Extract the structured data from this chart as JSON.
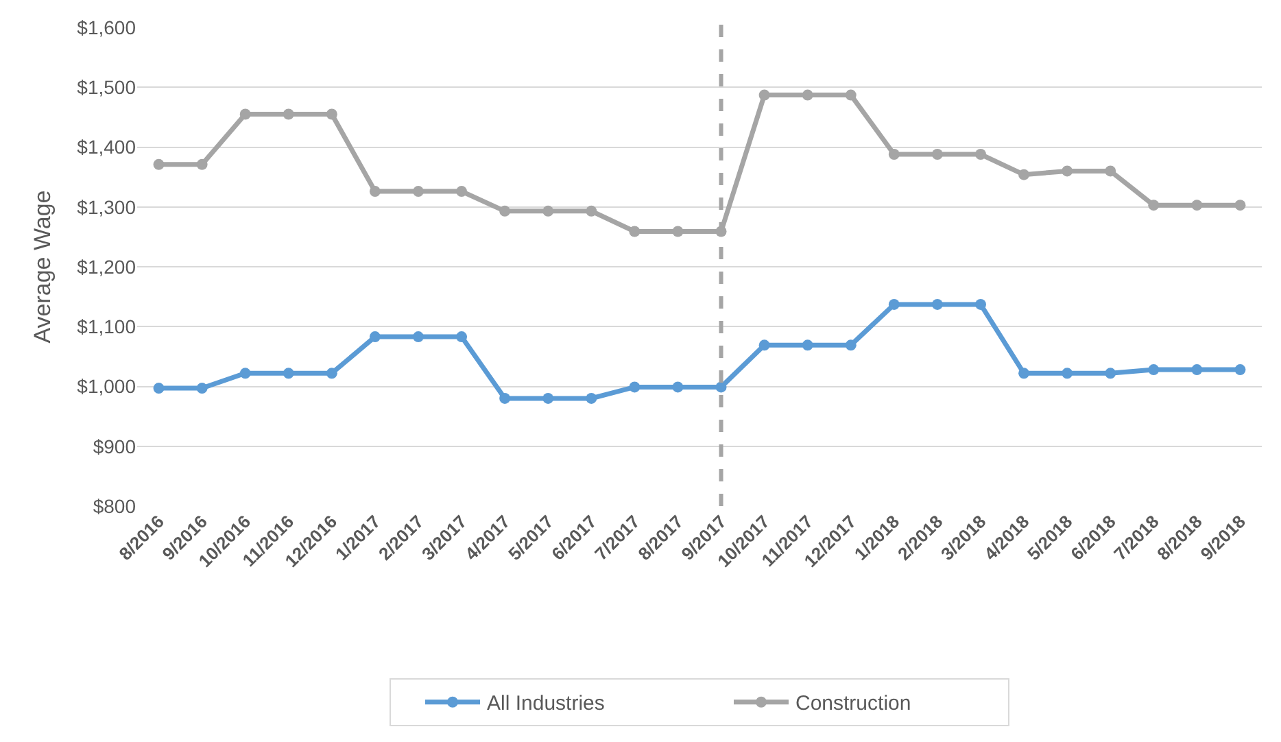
{
  "chart_data": {
    "type": "line",
    "ylabel": "Average Wage",
    "categories": [
      "8/2016",
      "9/2016",
      "10/2016",
      "11/2016",
      "12/2016",
      "1/2017",
      "2/2017",
      "3/2017",
      "4/2017",
      "5/2017",
      "6/2017",
      "7/2017",
      "8/2017",
      "9/2017",
      "10/2017",
      "11/2017",
      "12/2017",
      "1/2018",
      "2/2018",
      "3/2018",
      "4/2018",
      "5/2018",
      "6/2018",
      "7/2018",
      "8/2018",
      "9/2018"
    ],
    "series": [
      {
        "name": "All Industries",
        "color": "#5b9bd5",
        "values": [
          997,
          997,
          1022,
          1022,
          1022,
          1083,
          1083,
          1083,
          980,
          980,
          980,
          999,
          999,
          999,
          1069,
          1069,
          1069,
          1137,
          1137,
          1137,
          1022,
          1022,
          1022,
          1028,
          1028,
          1028
        ]
      },
      {
        "name": "Construction",
        "color": "#a5a5a5",
        "values": [
          1371,
          1371,
          1455,
          1455,
          1455,
          1326,
          1326,
          1326,
          1293,
          1293,
          1293,
          1259,
          1259,
          1259,
          1487,
          1487,
          1487,
          1388,
          1388,
          1388,
          1354,
          1360,
          1360,
          1303,
          1303,
          1303
        ]
      }
    ],
    "ylim": [
      800,
      1600
    ],
    "yticks": [
      {
        "value": 800,
        "label": "$800"
      },
      {
        "value": 900,
        "label": "$900"
      },
      {
        "value": 1000,
        "label": "$1,000"
      },
      {
        "value": 1100,
        "label": "$1,100"
      },
      {
        "value": 1200,
        "label": "$1,200"
      },
      {
        "value": 1300,
        "label": "$1,300"
      },
      {
        "value": 1400,
        "label": "$1,400"
      },
      {
        "value": 1500,
        "label": "$1,500"
      },
      {
        "value": 1600,
        "label": "$1,600"
      }
    ],
    "grid": "y",
    "legend": "bottom",
    "marker": "circle",
    "line_style": "solid",
    "ref_lines": [
      {
        "axis": "x",
        "value": "9/2017",
        "color": "#a5a5a5",
        "line_style": "dashed"
      }
    ]
  }
}
